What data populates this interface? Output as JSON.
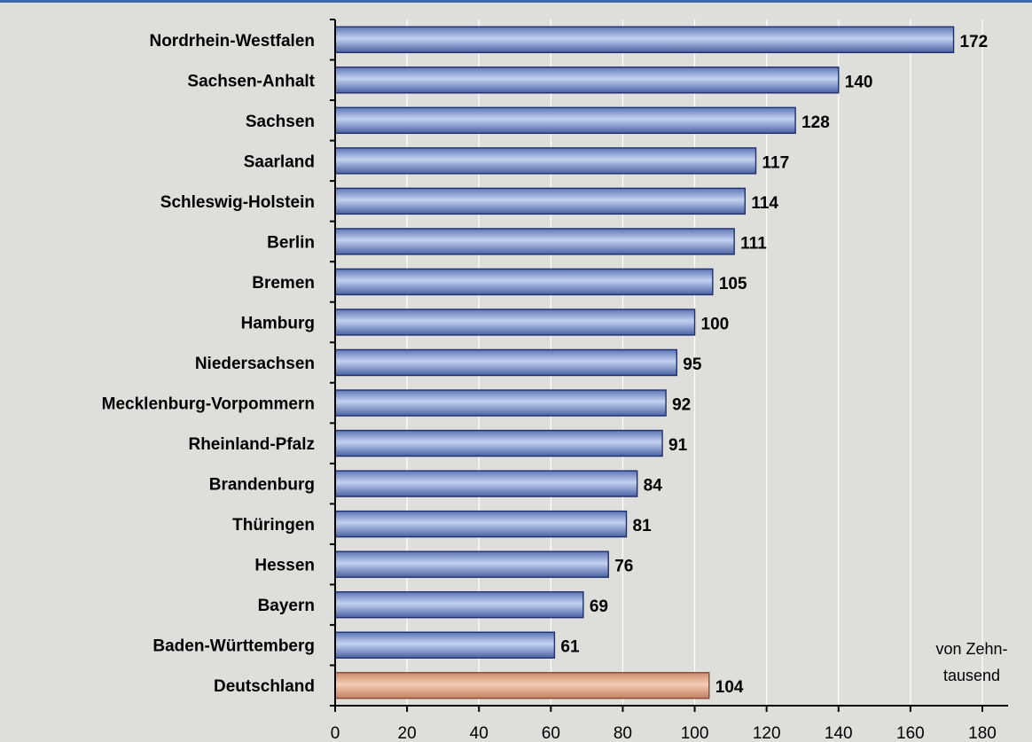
{
  "chart_data": {
    "type": "bar",
    "orientation": "horizontal",
    "categories": [
      "Nordrhein-Westfalen",
      "Sachsen-Anhalt",
      "Sachsen",
      "Saarland",
      "Schleswig-Holstein",
      "Berlin",
      "Bremen",
      "Hamburg",
      "Niedersachsen",
      "Mecklenburg-Vorpommern",
      "Rheinland-Pfalz",
      "Brandenburg",
      "Thüringen",
      "Hessen",
      "Bayern",
      "Baden-Württemberg",
      "Deutschland"
    ],
    "values": [
      172,
      140,
      128,
      117,
      114,
      111,
      105,
      100,
      95,
      92,
      91,
      84,
      81,
      76,
      69,
      61,
      104
    ],
    "xlim": [
      0,
      180
    ],
    "xticks": [
      0,
      20,
      40,
      60,
      80,
      100,
      120,
      140,
      160,
      180
    ],
    "unit_label_line1": "von Zehn-",
    "unit_label_line2": "tausend",
    "grid": "vertical",
    "colors": {
      "bar": "#8ca3d6",
      "bar_highlight": "#e0a98a",
      "bar_stroke": "#1f2f6e",
      "highlight_stroke": "#8a4a38",
      "grid": "#ffffff",
      "background": "#dededb"
    },
    "highlight_category": "Deutschland"
  }
}
